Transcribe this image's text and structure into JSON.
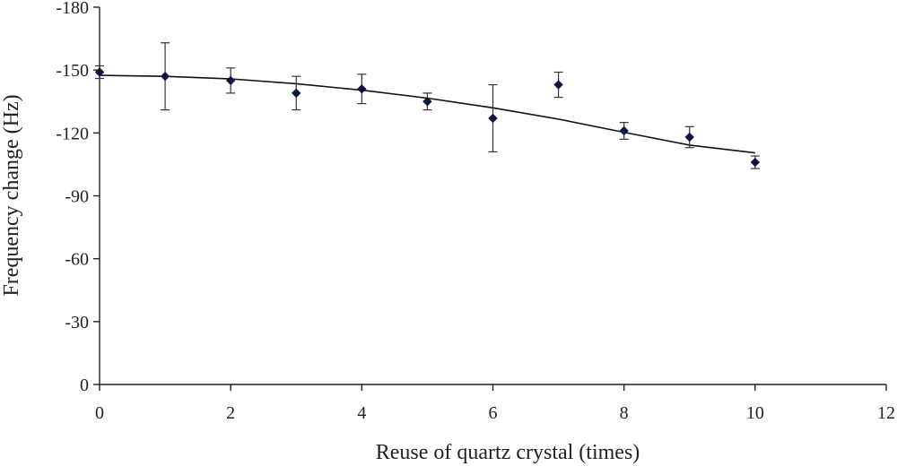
{
  "chart_data": {
    "type": "scatter",
    "title": "",
    "xlabel": "Reuse of quartz crystal (times)",
    "ylabel": "Frequency change (Hz)",
    "xlim": [
      0,
      12
    ],
    "ylim": [
      0,
      -180
    ],
    "y_axis_inverted": true,
    "grid": false,
    "legend": "none",
    "x_ticks": [
      0,
      2,
      4,
      6,
      8,
      10,
      12
    ],
    "x_tick_labels": [
      "0",
      "2",
      "4",
      "6",
      "8",
      "10",
      "12"
    ],
    "y_ticks": [
      0,
      -30,
      -60,
      -90,
      -120,
      -150,
      -180
    ],
    "y_tick_labels": [
      "0",
      "-30",
      "-60",
      "-90",
      "-120",
      "-150",
      "-180"
    ],
    "series": [
      {
        "type": "scatter_with_error_bars",
        "color": "#0b1540",
        "x": [
          0,
          1,
          2,
          3,
          4,
          5,
          6,
          7,
          8,
          9,
          10
        ],
        "y": [
          -149,
          -147,
          -145,
          -139,
          -141,
          -135,
          -127,
          -143,
          -121,
          -118,
          -106
        ],
        "error": [
          3,
          16,
          6,
          8,
          7,
          4,
          16,
          6,
          4,
          5,
          3
        ]
      },
      {
        "type": "line",
        "color": "#111111",
        "x": [
          0,
          1,
          2,
          3,
          4,
          5,
          6,
          7,
          8,
          9,
          10
        ],
        "y": [
          -147.5,
          -147,
          -145.8,
          -143.5,
          -140.4,
          -136.6,
          -132.0,
          -126.6,
          -120.3,
          -114.2,
          -110.5
        ]
      }
    ]
  }
}
